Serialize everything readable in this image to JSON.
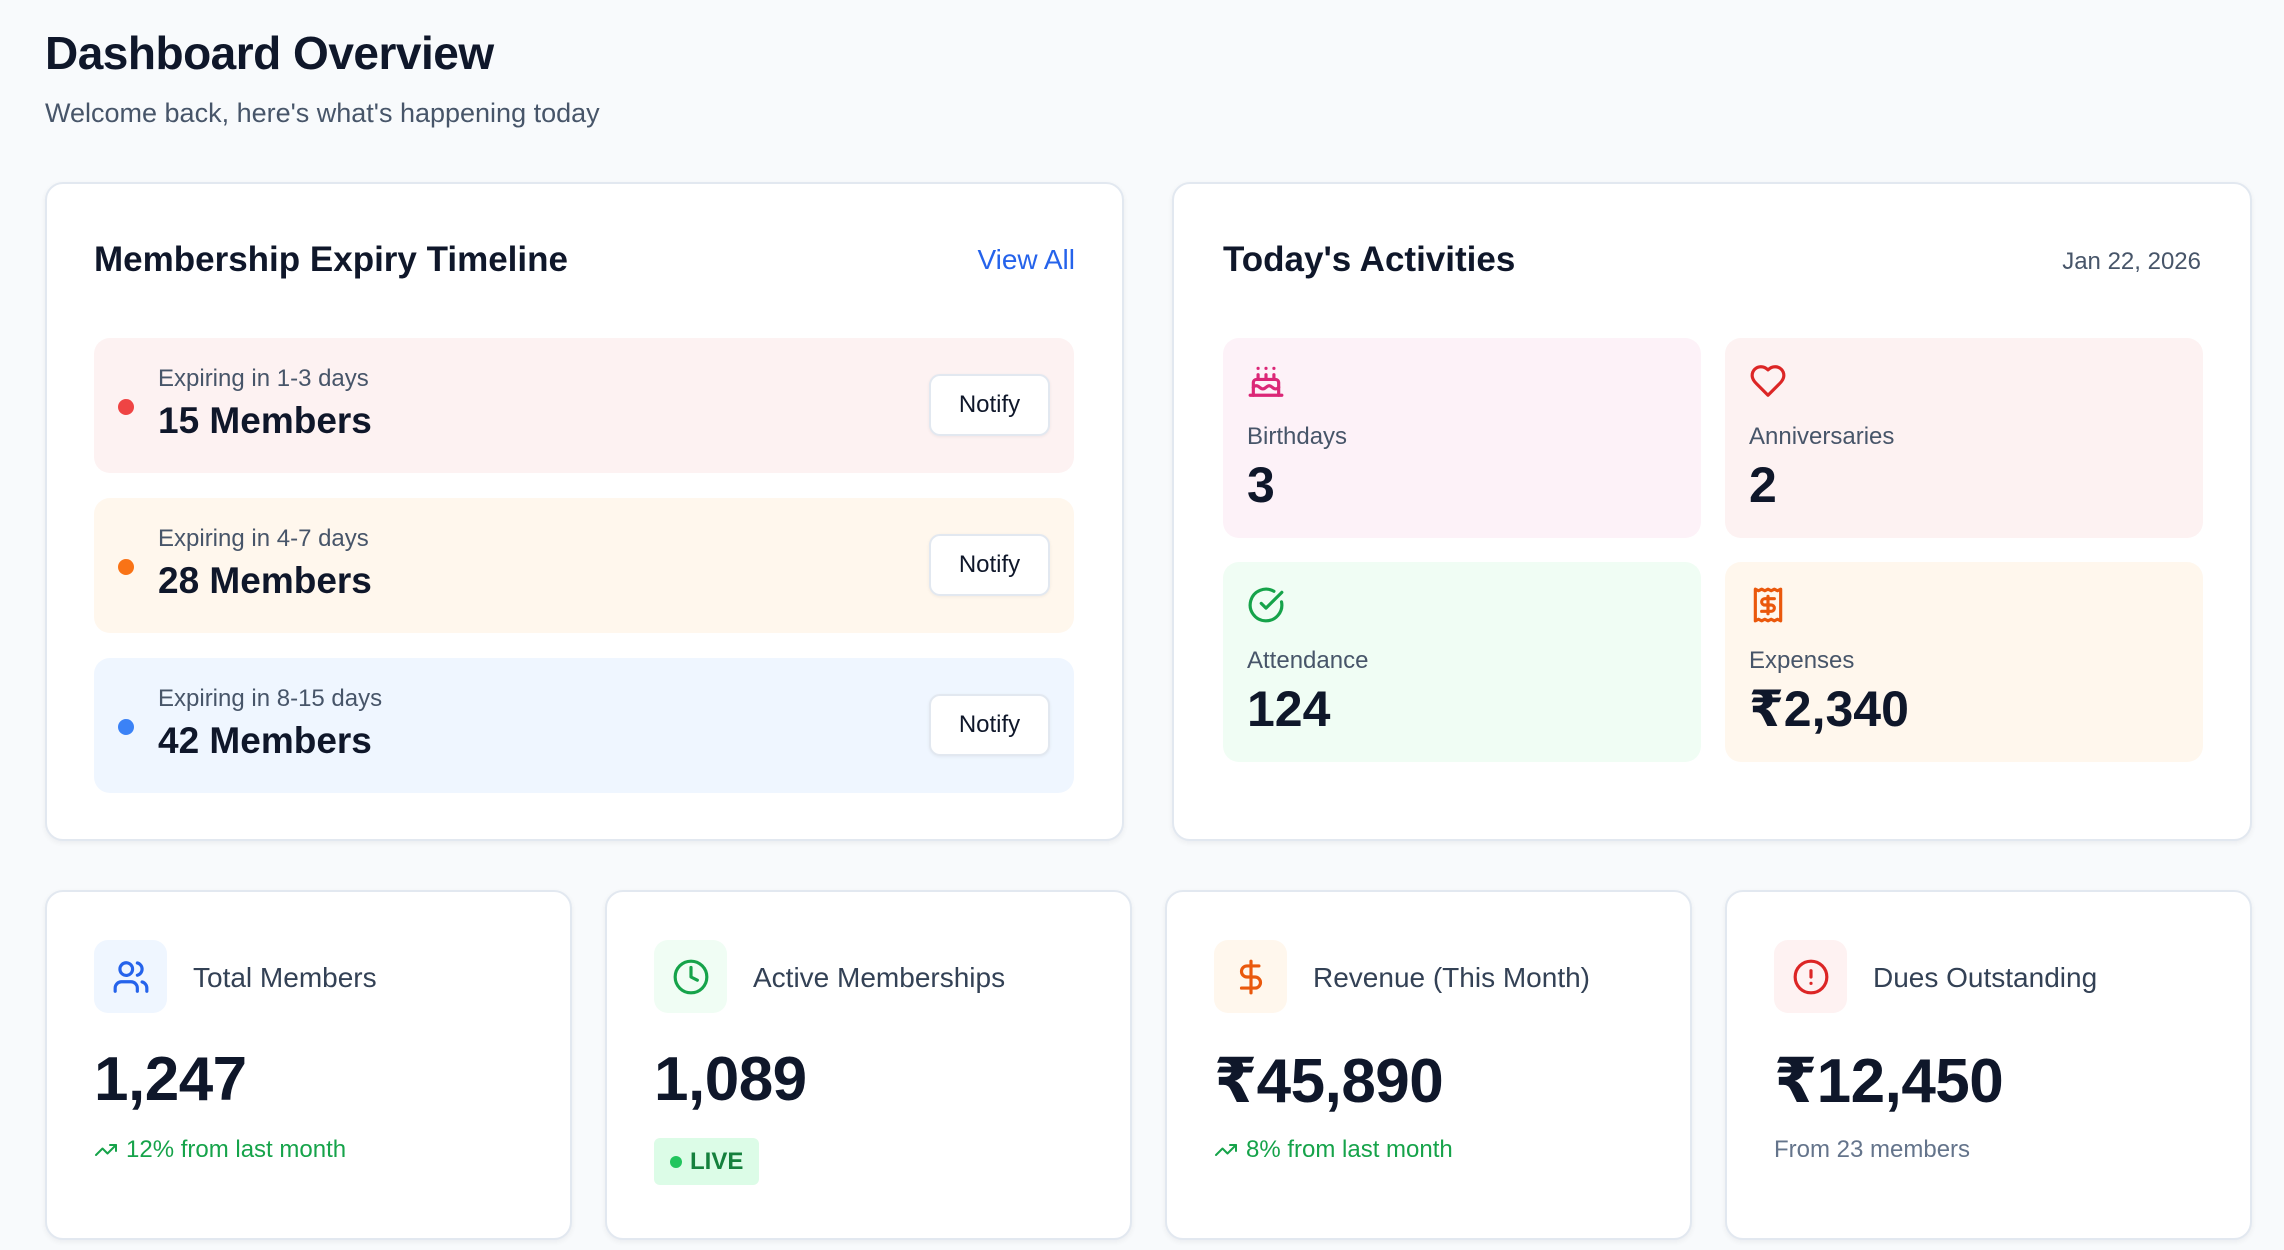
{
  "header": {
    "title": "Dashboard Overview",
    "subtitle": "Welcome back, here's what's happening today"
  },
  "expiry": {
    "title": "Membership Expiry Timeline",
    "view_all_label": "View All",
    "notify_label": "Notify",
    "items": [
      {
        "label": "Expiring in 1-3 days",
        "count": "15 Members",
        "dot_color": "#ef4444",
        "bg": "#fdf2f2"
      },
      {
        "label": "Expiring in 4-7 days",
        "count": "28 Members",
        "dot_color": "#f97316",
        "bg": "#fff7ed"
      },
      {
        "label": "Expiring in 8-15 days",
        "count": "42 Members",
        "dot_color": "#3b82f6",
        "bg": "#eff6ff"
      }
    ]
  },
  "activities": {
    "title": "Today's Activities",
    "date": "Jan 22, 2026",
    "tiles": [
      {
        "icon": "cake-icon",
        "label": "Birthdays",
        "value": "3",
        "bg": "#fdf2f8",
        "icon_color": "#db2777"
      },
      {
        "icon": "heart-icon",
        "label": "Anniversaries",
        "value": "2",
        "bg": "#fdf2f2",
        "icon_color": "#dc2626"
      },
      {
        "icon": "check-circle-icon",
        "label": "Attendance",
        "value": "124",
        "bg": "#f0fdf4",
        "icon_color": "#16a34a"
      },
      {
        "icon": "receipt-icon",
        "label": "Expenses",
        "value": "₹2,340",
        "bg": "#fff7ed",
        "icon_color": "#ea580c"
      }
    ]
  },
  "stats": [
    {
      "icon": "users-icon",
      "label": "Total Members",
      "value": "1,247",
      "foot": "12% from last month",
      "foot_type": "trend",
      "icon_bg": "#eff6ff",
      "icon_color": "#2563eb"
    },
    {
      "icon": "clock-icon",
      "label": "Active Memberships",
      "value": "1,089",
      "foot": "LIVE",
      "foot_type": "live",
      "icon_bg": "#f0fdf4",
      "icon_color": "#16a34a"
    },
    {
      "icon": "dollar-icon",
      "label": "Revenue (This Month)",
      "value": "₹45,890",
      "foot": "8% from last month",
      "foot_type": "trend",
      "icon_bg": "#fff7ed",
      "icon_color": "#ea580c"
    },
    {
      "icon": "alert-circle-icon",
      "label": "Dues Outstanding",
      "value": "₹12,450",
      "foot": "From 23 members",
      "foot_type": "plain",
      "icon_bg": "#fef2f2",
      "icon_color": "#dc2626"
    }
  ]
}
